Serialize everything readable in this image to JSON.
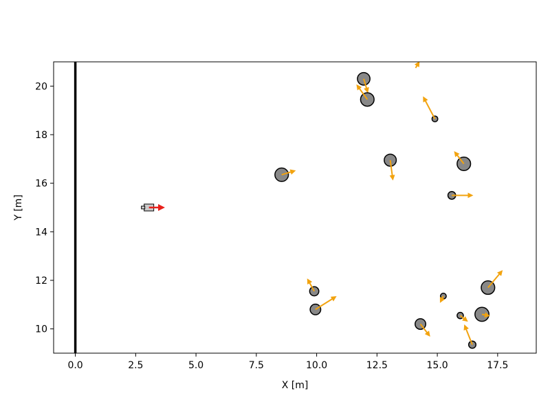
{
  "chart_data": {
    "type": "scatter",
    "title": "",
    "xlabel": "X [m]",
    "ylabel": "Y [m]",
    "xlim": [
      -0.9,
      19.1
    ],
    "ylim": [
      9.0,
      21.0
    ],
    "grid": false,
    "legend": "none",
    "xticks": [
      {
        "v": 0.0,
        "label": "0.0"
      },
      {
        "v": 2.5,
        "label": "2.5"
      },
      {
        "v": 5.0,
        "label": "5.0"
      },
      {
        "v": 7.5,
        "label": "7.5"
      },
      {
        "v": 10.0,
        "label": "10.0"
      },
      {
        "v": 12.5,
        "label": "12.5"
      },
      {
        "v": 15.0,
        "label": "15.0"
      },
      {
        "v": 17.5,
        "label": "17.5"
      }
    ],
    "yticks": [
      {
        "v": 10,
        "label": "10"
      },
      {
        "v": 12,
        "label": "12"
      },
      {
        "v": 14,
        "label": "14"
      },
      {
        "v": 16,
        "label": "16"
      },
      {
        "v": 18,
        "label": "18"
      },
      {
        "v": 20,
        "label": "20"
      }
    ],
    "wall": {
      "x": 0.0,
      "color": "#000000"
    },
    "robot": {
      "x": 3.05,
      "y": 15.0,
      "heading": [
        0.55,
        0.0
      ],
      "body_color": "#cccccc",
      "arrow_color": "#e8211b"
    },
    "agents": [
      {
        "x": 11.95,
        "y": 20.3,
        "r": 0.26,
        "vx": 0.15,
        "vy": -0.5
      },
      {
        "x": 12.1,
        "y": 19.45,
        "r": 0.28,
        "vx": -0.4,
        "vy": 0.55
      },
      {
        "x": 14.9,
        "y": 18.65,
        "r": 0.12,
        "vx": -0.45,
        "vy": 0.85
      },
      {
        "x": 13.05,
        "y": 16.95,
        "r": 0.25,
        "vx": 0.1,
        "vy": -0.75
      },
      {
        "x": 16.1,
        "y": 16.8,
        "r": 0.28,
        "vx": -0.35,
        "vy": 0.45
      },
      {
        "x": 8.55,
        "y": 16.35,
        "r": 0.28,
        "vx": 0.5,
        "vy": 0.15
      },
      {
        "x": 15.6,
        "y": 15.5,
        "r": 0.16,
        "vx": 0.8,
        "vy": 0.0
      },
      {
        "x": 9.9,
        "y": 11.55,
        "r": 0.19,
        "vx": -0.25,
        "vy": 0.45
      },
      {
        "x": 9.95,
        "y": 10.8,
        "r": 0.22,
        "vx": 0.8,
        "vy": 0.5
      },
      {
        "x": 17.1,
        "y": 11.7,
        "r": 0.28,
        "vx": 0.55,
        "vy": 0.65
      },
      {
        "x": 15.25,
        "y": 11.35,
        "r": 0.12,
        "vx": -0.1,
        "vy": -0.2
      },
      {
        "x": 16.85,
        "y": 10.6,
        "r": 0.29,
        "vx": 0.25,
        "vy": -0.05
      },
      {
        "x": 15.95,
        "y": 10.55,
        "r": 0.13,
        "vx": 0.25,
        "vy": -0.2
      },
      {
        "x": 14.3,
        "y": 10.2,
        "r": 0.22,
        "vx": 0.35,
        "vy": -0.45
      },
      {
        "x": 16.45,
        "y": 9.35,
        "r": 0.15,
        "vx": -0.3,
        "vy": 0.75
      },
      {
        "x": 14.1,
        "y": 20.75,
        "r": 0.0,
        "vx": 0.12,
        "vy": 0.2
      }
    ],
    "agent_fill": "#888888",
    "agent_edge": "#000000",
    "arrow_color": "#f2a30f"
  }
}
